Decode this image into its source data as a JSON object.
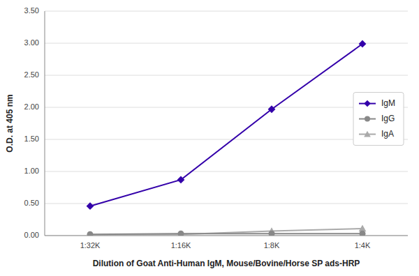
{
  "chart_data": {
    "type": "line",
    "xlabel": "Dilution of Goat Anti-Human IgM, Mouse/Bovine/Horse SP ads-HRP",
    "ylabel": "O.D. at 405 nm",
    "categories": [
      "1:32K",
      "1:16K",
      "1:8K",
      "1:4K"
    ],
    "series": [
      {
        "name": "IgM",
        "color": "#3300AA",
        "marker": "diamond",
        "values": [
          0.46,
          0.87,
          1.97,
          2.99
        ]
      },
      {
        "name": "IgG",
        "color": "#888888",
        "marker": "circle",
        "values": [
          0.02,
          0.03,
          0.03,
          0.03
        ]
      },
      {
        "name": "IgA",
        "color": "#AAAAAA",
        "marker": "triangle",
        "values": [
          0.01,
          0.02,
          0.07,
          0.11
        ]
      }
    ],
    "ylim": [
      0.0,
      3.5
    ],
    "yticks": [
      {
        "value": 0.0,
        "label": "0.00"
      },
      {
        "value": 0.5,
        "label": "0.50"
      },
      {
        "value": 1.0,
        "label": "1.00"
      },
      {
        "value": 1.5,
        "label": "1.50"
      },
      {
        "value": 2.0,
        "label": "2.00"
      },
      {
        "value": 2.5,
        "label": "2.50"
      },
      {
        "value": 3.0,
        "label": "3.00"
      },
      {
        "value": 3.5,
        "label": "3.50"
      }
    ],
    "grid": true,
    "legend": "right"
  }
}
